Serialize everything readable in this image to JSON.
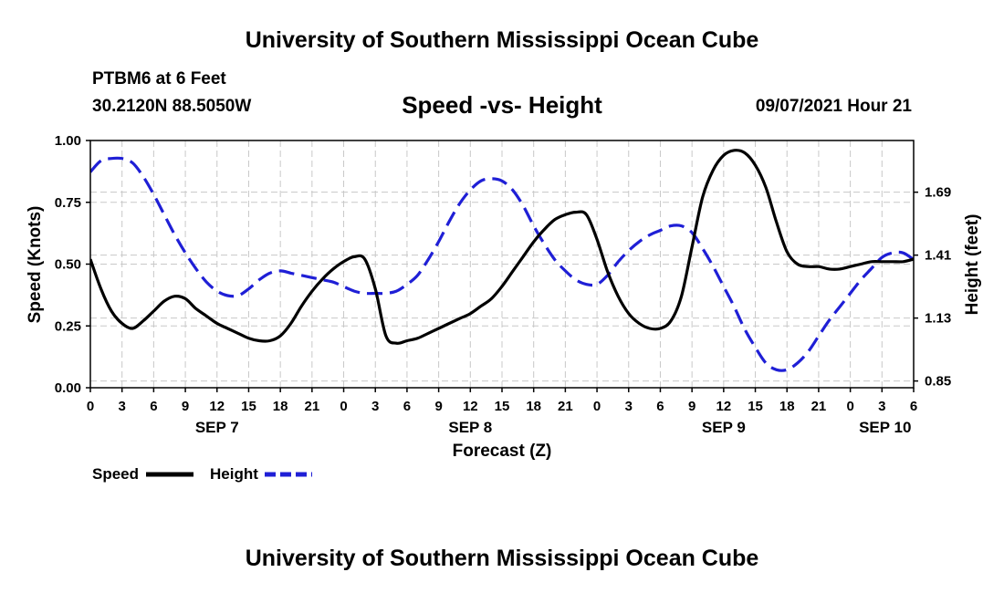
{
  "header": {
    "title": "University of Southern Mississippi Ocean Cube",
    "station": "PTBM6 at 6 Feet",
    "coords": "30.2120N  88.5050W",
    "datetime": "09/07/2021 Hour 21"
  },
  "footer": {
    "title": "University of Southern Mississippi Ocean Cube"
  },
  "chart_data": {
    "type": "line",
    "title": "Speed -vs- Height",
    "xlabel": "Forecast (Z)",
    "ylabel_left": "Speed (Knots)",
    "ylabel_right": "Height (feet)",
    "x_unit": "hours since 09/07 00Z",
    "xlim": [
      0,
      78
    ],
    "ylim_left": [
      0,
      1.0
    ],
    "ylim_right": [
      0.82,
      1.92
    ],
    "left_ticks": [
      {
        "value": 0.0,
        "label": "0.00"
      },
      {
        "value": 0.25,
        "label": "0.25"
      },
      {
        "value": 0.5,
        "label": "0.50"
      },
      {
        "value": 0.75,
        "label": "0.75"
      },
      {
        "value": 1.0,
        "label": "1.00"
      }
    ],
    "right_ticks": [
      {
        "value": 0.85,
        "label": "0.85"
      },
      {
        "value": 1.13,
        "label": "1.13"
      },
      {
        "value": 1.41,
        "label": "1.41"
      },
      {
        "value": 1.69,
        "label": "1.69"
      }
    ],
    "x_ticks": [
      {
        "value": 0,
        "label": "0"
      },
      {
        "value": 3,
        "label": "3"
      },
      {
        "value": 6,
        "label": "6"
      },
      {
        "value": 9,
        "label": "9"
      },
      {
        "value": 12,
        "label": "12"
      },
      {
        "value": 15,
        "label": "15"
      },
      {
        "value": 18,
        "label": "18"
      },
      {
        "value": 21,
        "label": "21"
      },
      {
        "value": 24,
        "label": "0"
      },
      {
        "value": 27,
        "label": "3"
      },
      {
        "value": 30,
        "label": "6"
      },
      {
        "value": 33,
        "label": "9"
      },
      {
        "value": 36,
        "label": "12"
      },
      {
        "value": 39,
        "label": "15"
      },
      {
        "value": 42,
        "label": "18"
      },
      {
        "value": 45,
        "label": "21"
      },
      {
        "value": 48,
        "label": "0"
      },
      {
        "value": 51,
        "label": "3"
      },
      {
        "value": 54,
        "label": "6"
      },
      {
        "value": 57,
        "label": "9"
      },
      {
        "value": 60,
        "label": "12"
      },
      {
        "value": 63,
        "label": "15"
      },
      {
        "value": 66,
        "label": "18"
      },
      {
        "value": 69,
        "label": "21"
      },
      {
        "value": 72,
        "label": "0"
      },
      {
        "value": 75,
        "label": "3"
      },
      {
        "value": 78,
        "label": "6"
      }
    ],
    "day_labels": [
      {
        "value": 12,
        "label": "SEP 7"
      },
      {
        "value": 36,
        "label": "SEP 8"
      },
      {
        "value": 60,
        "label": "SEP 9"
      },
      {
        "value": 75.3,
        "label": "SEP 10"
      }
    ],
    "grid": true,
    "series": [
      {
        "name": "Speed",
        "axis": "left",
        "color": "#000000",
        "style": "solid",
        "x": [
          0,
          1,
          2,
          3,
          4,
          5,
          6,
          7,
          8,
          9,
          10,
          11,
          12,
          13,
          14,
          15,
          16,
          17,
          18,
          19,
          20,
          21,
          22,
          23,
          24,
          25,
          26,
          27,
          28,
          29,
          30,
          31,
          32,
          33,
          34,
          35,
          36,
          37,
          38,
          39,
          40,
          41,
          42,
          43,
          44,
          45,
          46,
          47,
          48,
          49,
          50,
          51,
          52,
          53,
          54,
          55,
          56,
          57,
          58,
          59,
          60,
          61,
          62,
          63,
          64,
          65,
          66,
          67,
          68,
          69,
          70,
          71,
          72,
          73,
          74,
          75,
          76,
          77,
          78
        ],
        "values": [
          0.52,
          0.4,
          0.31,
          0.26,
          0.24,
          0.27,
          0.31,
          0.35,
          0.37,
          0.36,
          0.32,
          0.29,
          0.26,
          0.24,
          0.22,
          0.2,
          0.19,
          0.19,
          0.21,
          0.26,
          0.33,
          0.39,
          0.44,
          0.48,
          0.51,
          0.53,
          0.52,
          0.4,
          0.21,
          0.18,
          0.19,
          0.2,
          0.22,
          0.24,
          0.26,
          0.28,
          0.3,
          0.33,
          0.36,
          0.41,
          0.47,
          0.53,
          0.59,
          0.64,
          0.68,
          0.7,
          0.71,
          0.7,
          0.6,
          0.47,
          0.37,
          0.3,
          0.26,
          0.24,
          0.24,
          0.27,
          0.37,
          0.57,
          0.77,
          0.88,
          0.94,
          0.96,
          0.95,
          0.9,
          0.81,
          0.67,
          0.55,
          0.5,
          0.49,
          0.49,
          0.48,
          0.48,
          0.49,
          0.5,
          0.51,
          0.51,
          0.51,
          0.51,
          0.52
        ]
      },
      {
        "name": "Height",
        "axis": "right",
        "color": "#1f1fd6",
        "style": "dashed",
        "x": [
          0,
          1,
          2,
          3,
          4,
          5,
          6,
          7,
          8,
          9,
          10,
          11,
          12,
          13,
          14,
          15,
          16,
          17,
          18,
          19,
          20,
          21,
          22,
          23,
          24,
          25,
          26,
          27,
          28,
          29,
          30,
          31,
          32,
          33,
          34,
          35,
          36,
          37,
          38,
          39,
          40,
          41,
          42,
          43,
          44,
          45,
          46,
          47,
          48,
          49,
          50,
          51,
          52,
          53,
          54,
          55,
          56,
          57,
          58,
          59,
          60,
          61,
          62,
          63,
          64,
          65,
          66,
          67,
          68,
          69,
          70,
          71,
          72,
          73,
          74,
          75,
          76,
          77,
          78
        ],
        "values": [
          1.78,
          1.83,
          1.84,
          1.84,
          1.82,
          1.76,
          1.68,
          1.59,
          1.5,
          1.42,
          1.35,
          1.29,
          1.25,
          1.23,
          1.23,
          1.26,
          1.3,
          1.33,
          1.34,
          1.33,
          1.32,
          1.31,
          1.3,
          1.29,
          1.27,
          1.25,
          1.24,
          1.24,
          1.24,
          1.25,
          1.28,
          1.32,
          1.39,
          1.47,
          1.56,
          1.64,
          1.7,
          1.74,
          1.75,
          1.74,
          1.7,
          1.63,
          1.54,
          1.46,
          1.39,
          1.34,
          1.3,
          1.28,
          1.28,
          1.32,
          1.38,
          1.43,
          1.47,
          1.5,
          1.52,
          1.54,
          1.54,
          1.51,
          1.44,
          1.36,
          1.27,
          1.18,
          1.08,
          1.0,
          0.93,
          0.9,
          0.9,
          0.93,
          0.98,
          1.05,
          1.12,
          1.18,
          1.24,
          1.3,
          1.35,
          1.4,
          1.42,
          1.42,
          1.39
        ]
      }
    ],
    "legend": [
      {
        "label": "Speed",
        "color": "#000000",
        "style": "solid"
      },
      {
        "label": "Height",
        "color": "#1f1fd6",
        "style": "dashed"
      }
    ],
    "legend_position": "bottom-left"
  }
}
